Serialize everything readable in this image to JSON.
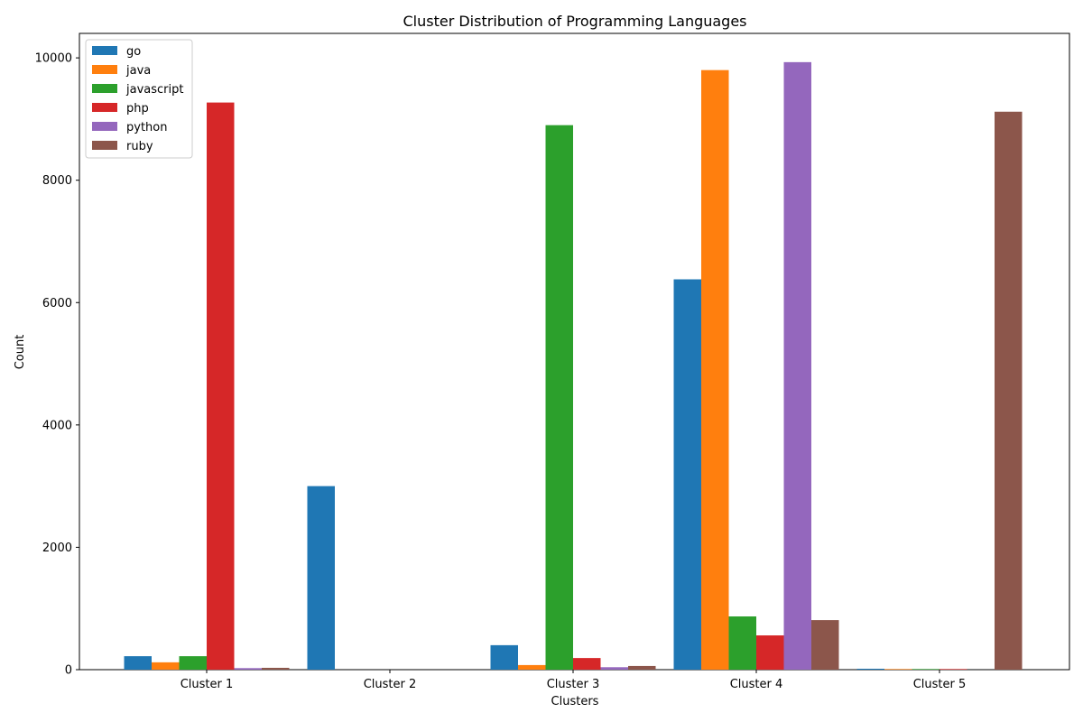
{
  "chart_data": {
    "type": "bar",
    "title": "Cluster Distribution of Programming Languages",
    "xlabel": "Clusters",
    "ylabel": "Count",
    "ylim": [
      0,
      10400
    ],
    "yticks": [
      0,
      2000,
      4000,
      6000,
      8000,
      10000
    ],
    "grid": false,
    "legend_position": "top-left",
    "categories": [
      "Cluster 1",
      "Cluster 2",
      "Cluster 3",
      "Cluster 4",
      "Cluster 5"
    ],
    "series": [
      {
        "name": "go",
        "color": "#1f77b4",
        "values": [
          220,
          3000,
          400,
          6380,
          15
        ]
      },
      {
        "name": "java",
        "color": "#ff7f0e",
        "values": [
          120,
          0,
          75,
          9800,
          10
        ]
      },
      {
        "name": "javascript",
        "color": "#2ca02c",
        "values": [
          220,
          0,
          8900,
          870,
          10
        ]
      },
      {
        "name": "php",
        "color": "#d62728",
        "values": [
          9270,
          0,
          190,
          560,
          10
        ]
      },
      {
        "name": "python",
        "color": "#9467bd",
        "values": [
          25,
          0,
          40,
          9930,
          0
        ]
      },
      {
        "name": "ruby",
        "color": "#8c564b",
        "values": [
          30,
          0,
          60,
          810,
          9120
        ]
      }
    ]
  }
}
